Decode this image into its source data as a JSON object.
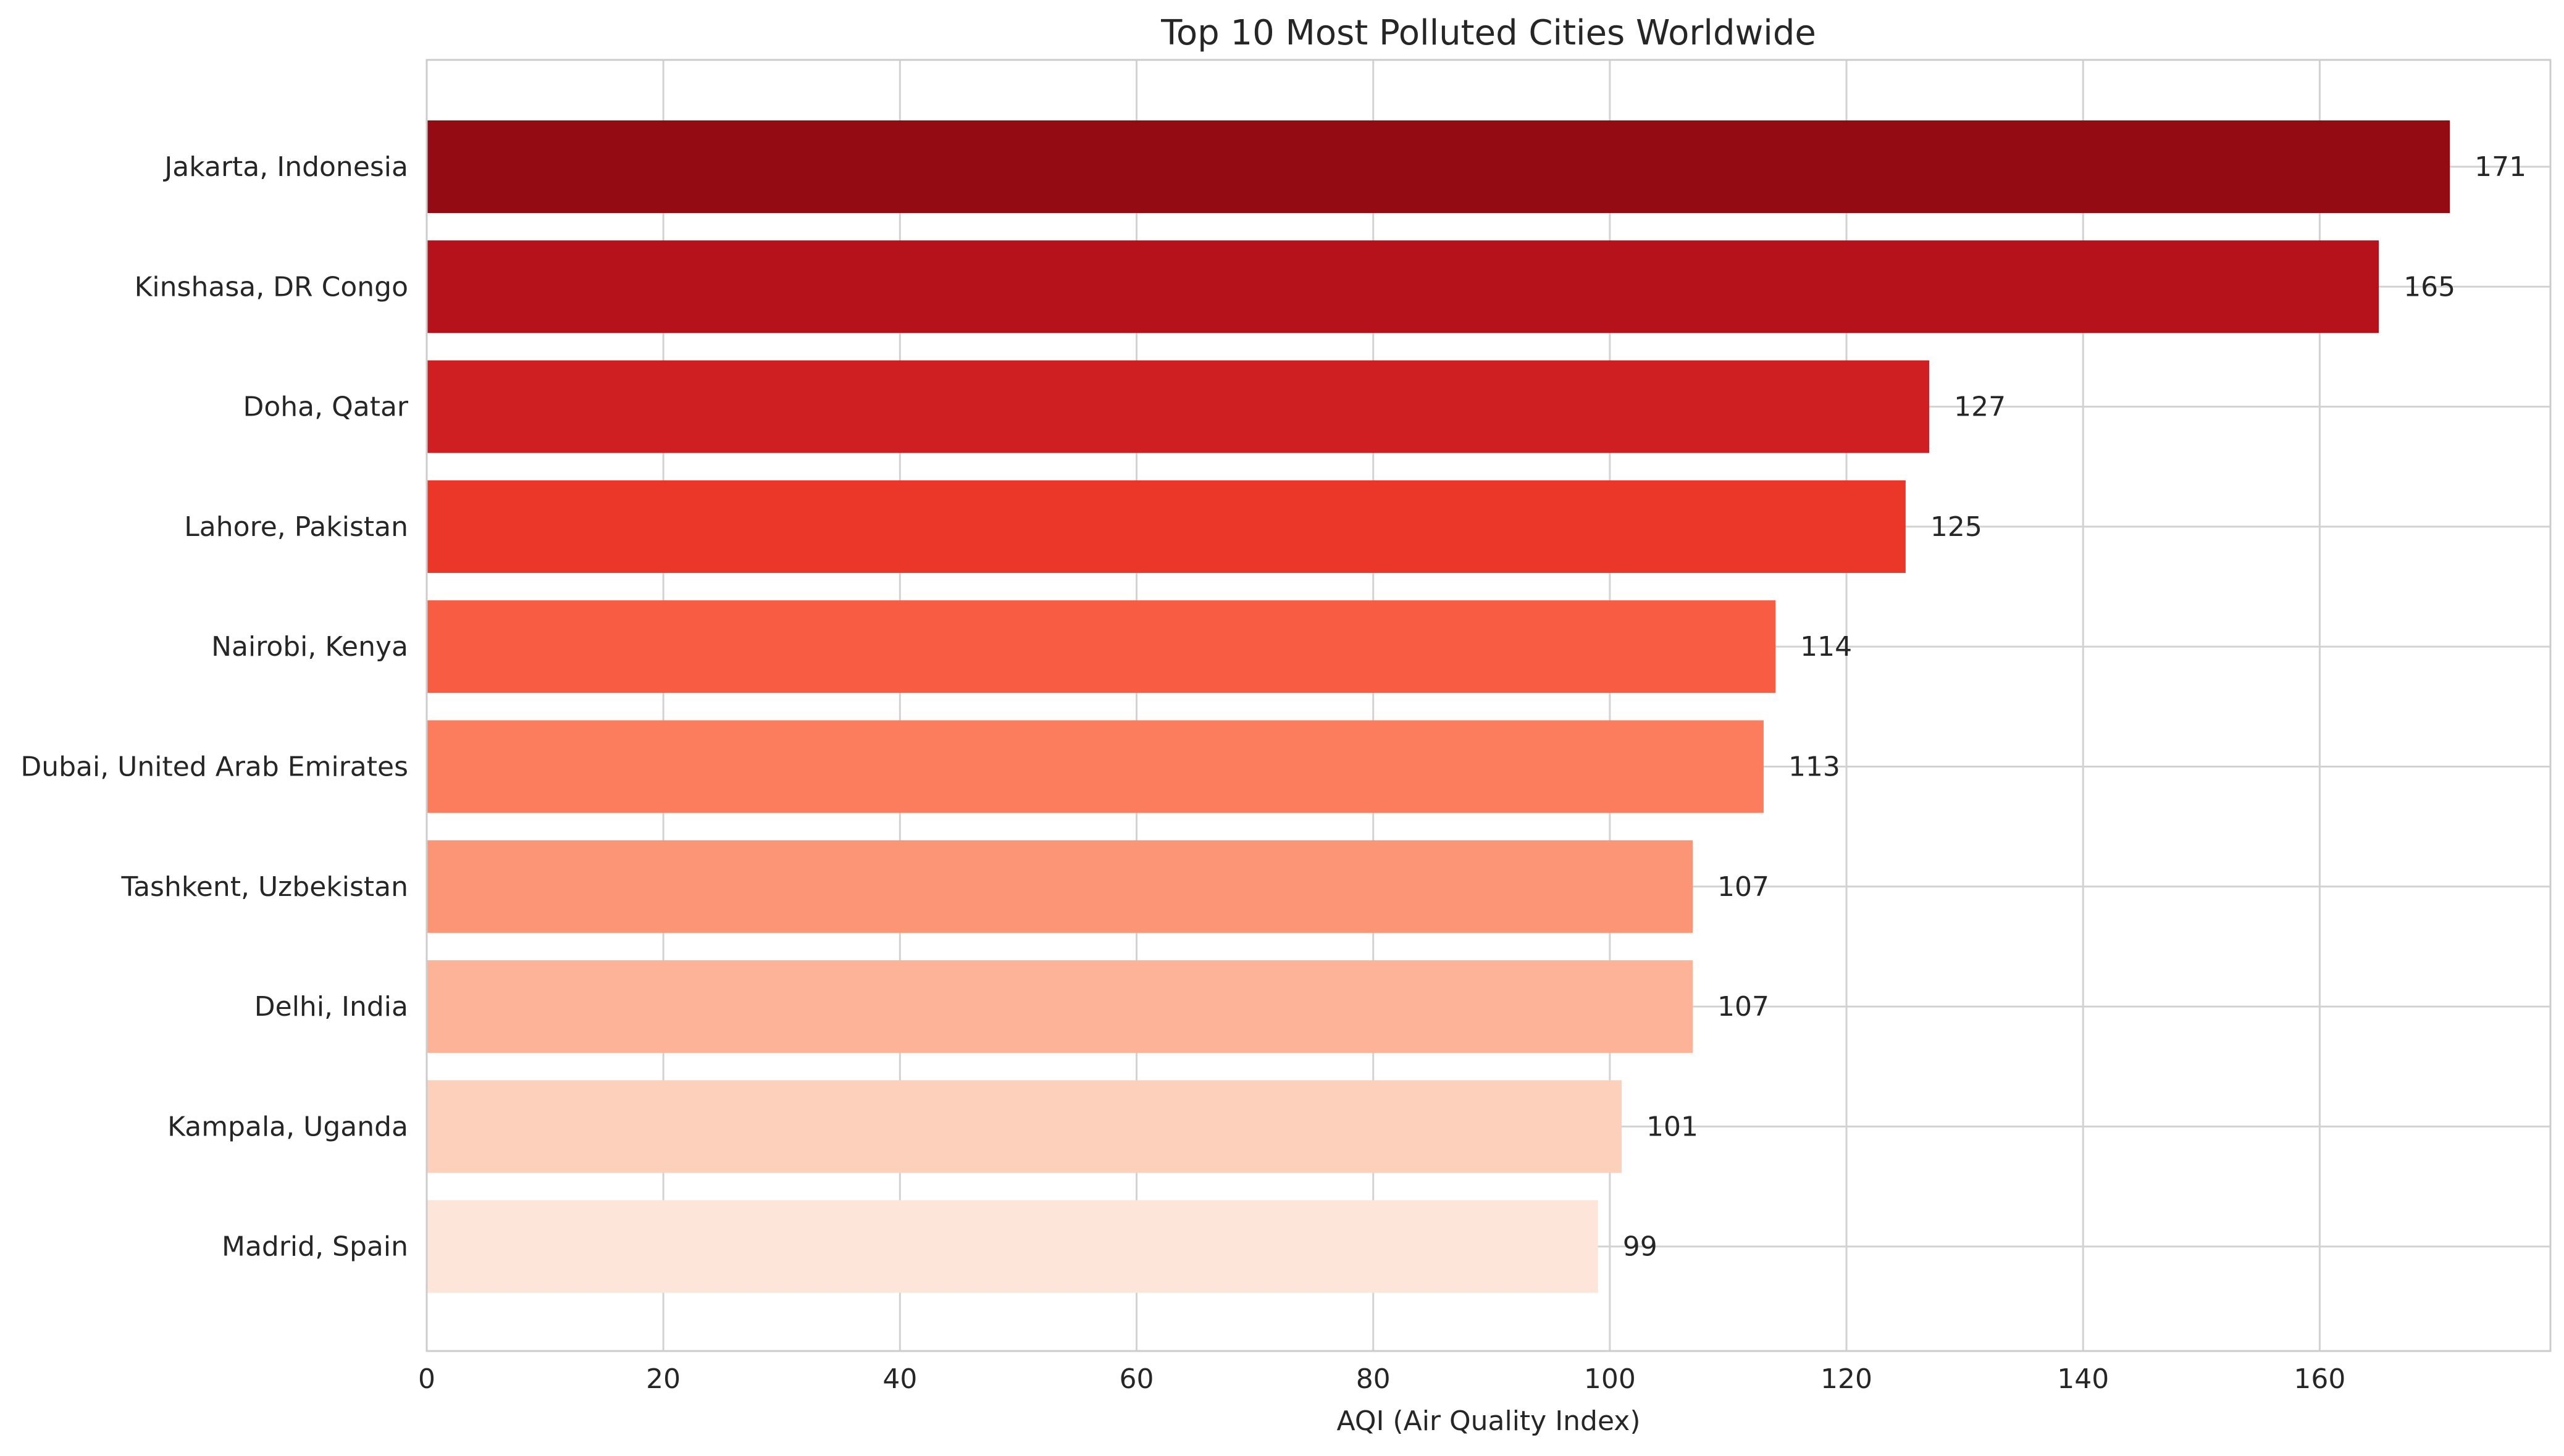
{
  "chart_data": {
    "type": "bar",
    "orientation": "horizontal",
    "title": "Top 10 Most Polluted Cities Worldwide",
    "xlabel": "AQI (Air Quality Index)",
    "ylabel": "",
    "xlim": [
      0,
      179.5
    ],
    "xticks": [
      0,
      20,
      40,
      60,
      80,
      100,
      120,
      140,
      160
    ],
    "grid": true,
    "categories": [
      "Jakarta, Indonesia",
      "Kinshasa, DR Congo",
      "Doha, Qatar",
      "Lahore, Pakistan",
      "Nairobi, Kenya",
      "Dubai, United Arab Emirates",
      "Tashkent, Uzbekistan",
      "Delhi, India",
      "Kampala, Uganda",
      "Madrid, Spain"
    ],
    "values": [
      171,
      165,
      127,
      125,
      114,
      113,
      107,
      107,
      101,
      99
    ],
    "value_labels": [
      "171",
      "165",
      "127",
      "125",
      "114",
      "113",
      "107",
      "107",
      "101",
      "99"
    ],
    "colors": [
      "#940b13",
      "#b5121b",
      "#d01f23",
      "#eb372a",
      "#f85d43",
      "#fc7d5d",
      "#fc9576",
      "#fcb398",
      "#fdd0bc",
      "#fee5d9"
    ]
  }
}
